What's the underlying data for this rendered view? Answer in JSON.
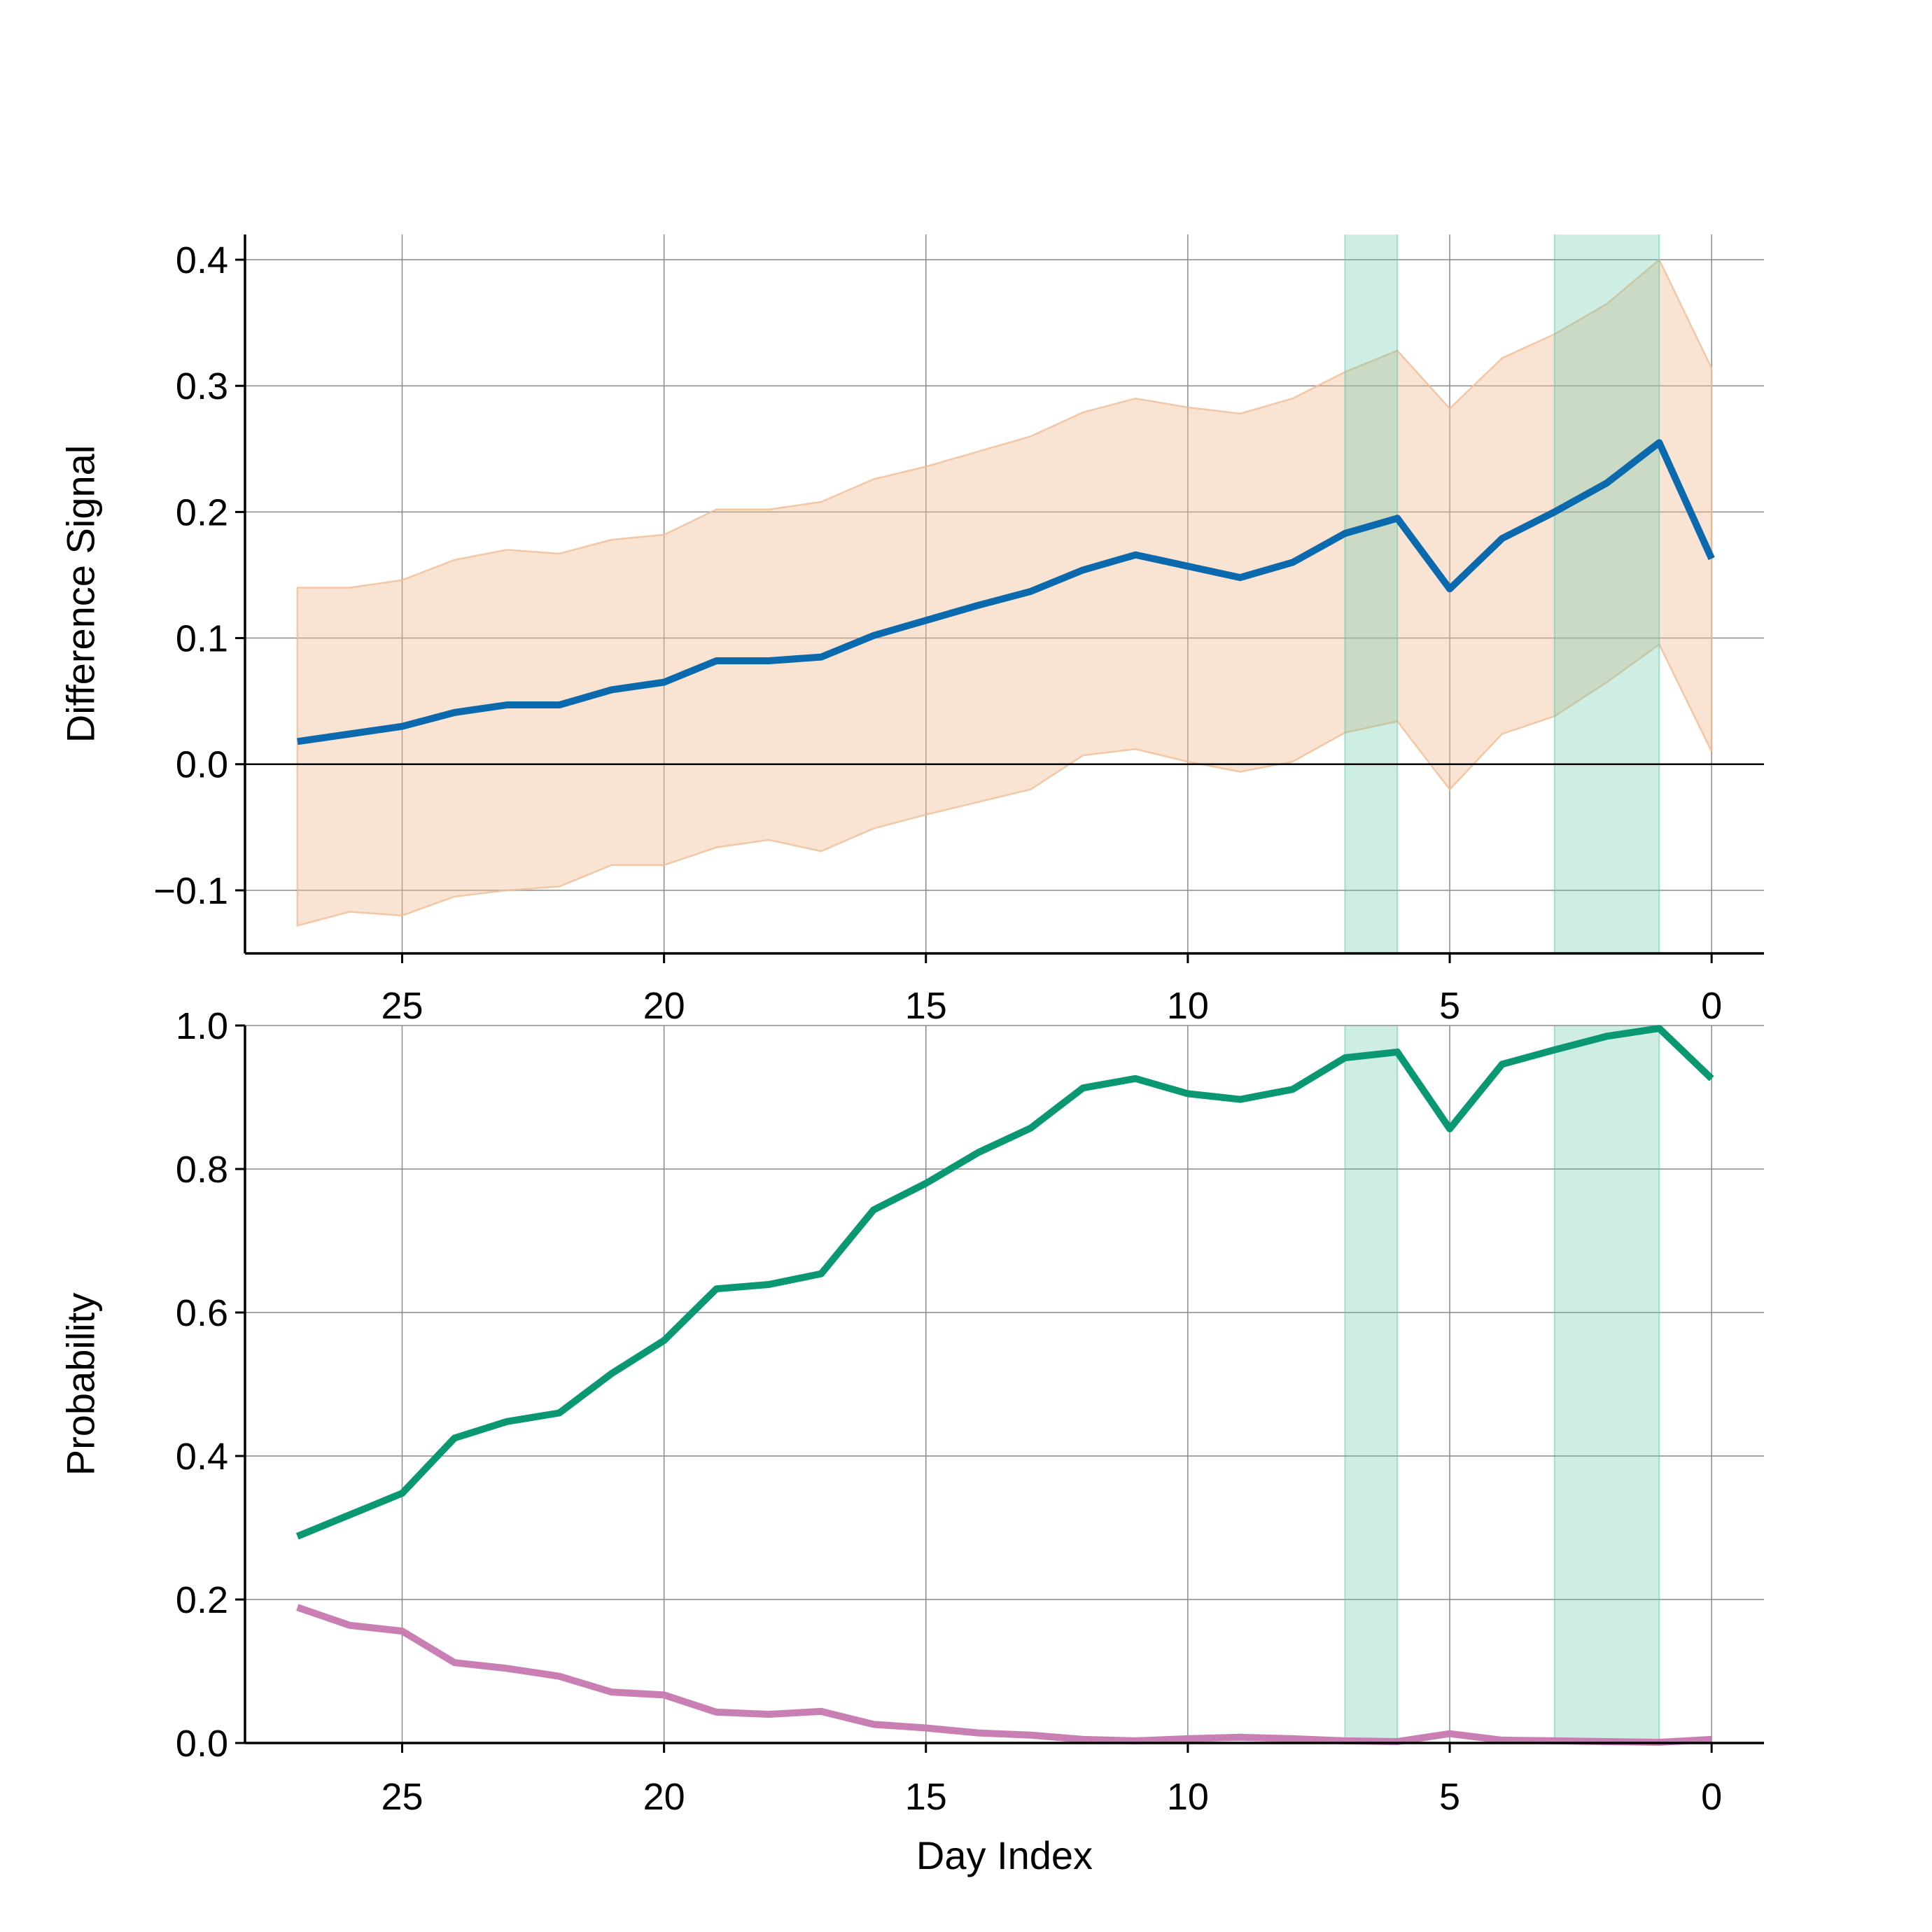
{
  "chart_data": [
    {
      "id": "difference",
      "type": "line",
      "xlabel": "",
      "ylabel": "Difference Signal",
      "xlim": [
        28,
        -1
      ],
      "ylim": [
        -0.15,
        0.42
      ],
      "x_ticks": [
        25,
        20,
        15,
        10,
        5,
        0
      ],
      "y_ticks": [
        -0.1,
        0.0,
        0.1,
        0.2,
        0.3,
        0.4
      ],
      "y_tick_labels": [
        "−0.1",
        "0.0",
        "0.1",
        "0.2",
        "0.3",
        "0.4"
      ],
      "grid": true,
      "zero_line": true,
      "highlight_spans": [
        [
          7,
          6
        ],
        [
          3,
          1
        ]
      ],
      "colors": {
        "line": "#0a6aad",
        "band": "#f0bd95",
        "span": "#5cc7a7"
      },
      "x": [
        27,
        26,
        25,
        24,
        23,
        22,
        21,
        20,
        19,
        18,
        17,
        16,
        15,
        14,
        13,
        12,
        11,
        10,
        9,
        8,
        7,
        6,
        5,
        4,
        3,
        2,
        1,
        0
      ],
      "series": [
        {
          "values": [
            0.018,
            0.024,
            0.03,
            0.041,
            0.047,
            0.047,
            0.059,
            0.065,
            0.082,
            0.082,
            0.085,
            0.102,
            0.114,
            0.126,
            0.137,
            0.154,
            0.166,
            0.157,
            0.148,
            0.16,
            0.183,
            0.195,
            0.139,
            0.179,
            0.2,
            0.223,
            0.255,
            0.163
          ],
          "lower": [
            -0.128,
            -0.117,
            -0.12,
            -0.105,
            -0.1,
            -0.097,
            -0.08,
            -0.08,
            -0.066,
            -0.06,
            -0.069,
            -0.051,
            -0.04,
            -0.03,
            -0.02,
            0.007,
            0.012,
            0.002,
            -0.006,
            0.002,
            0.025,
            0.034,
            -0.02,
            0.024,
            0.038,
            0.065,
            0.095,
            0.01
          ],
          "upper": [
            0.14,
            0.14,
            0.146,
            0.162,
            0.17,
            0.167,
            0.178,
            0.182,
            0.202,
            0.202,
            0.208,
            0.226,
            0.236,
            0.248,
            0.26,
            0.279,
            0.29,
            0.283,
            0.278,
            0.29,
            0.311,
            0.328,
            0.282,
            0.322,
            0.341,
            0.365,
            0.4,
            0.314
          ]
        }
      ]
    },
    {
      "id": "probability",
      "type": "line",
      "xlabel": "Day Index",
      "ylabel": "Probability",
      "xlim": [
        28,
        -1
      ],
      "ylim": [
        0.0,
        1.0
      ],
      "x_ticks": [
        25,
        20,
        15,
        10,
        5,
        0
      ],
      "y_ticks": [
        0.0,
        0.2,
        0.4,
        0.6,
        0.8,
        1.0
      ],
      "y_tick_labels": [
        "0.0",
        "0.2",
        "0.4",
        "0.6",
        "0.8",
        "1.0"
      ],
      "grid": true,
      "highlight_spans": [
        [
          7,
          6
        ],
        [
          3,
          1
        ]
      ],
      "colors": {
        "span": "#5cc7a7"
      },
      "x": [
        27,
        26,
        25,
        24,
        23,
        22,
        21,
        20,
        19,
        18,
        17,
        16,
        15,
        14,
        13,
        12,
        11,
        10,
        9,
        8,
        7,
        6,
        5,
        4,
        3,
        2,
        1,
        0
      ],
      "series": [
        {
          "color": "#0a9873",
          "values": [
            0.288,
            0.318,
            0.348,
            0.425,
            0.448,
            0.46,
            0.515,
            0.561,
            0.633,
            0.639,
            0.654,
            0.743,
            0.78,
            0.823,
            0.857,
            0.913,
            0.926,
            0.905,
            0.897,
            0.911,
            0.955,
            0.963,
            0.856,
            0.946,
            0.966,
            0.985,
            0.996,
            0.926
          ]
        },
        {
          "color": "#c97fb3",
          "values": [
            0.189,
            0.164,
            0.156,
            0.112,
            0.104,
            0.093,
            0.071,
            0.067,
            0.043,
            0.04,
            0.044,
            0.026,
            0.021,
            0.014,
            0.011,
            0.005,
            0.003,
            0.006,
            0.008,
            0.006,
            0.003,
            0.002,
            0.013,
            0.004,
            0.003,
            0.002,
            0.001,
            0.005
          ]
        }
      ]
    }
  ]
}
